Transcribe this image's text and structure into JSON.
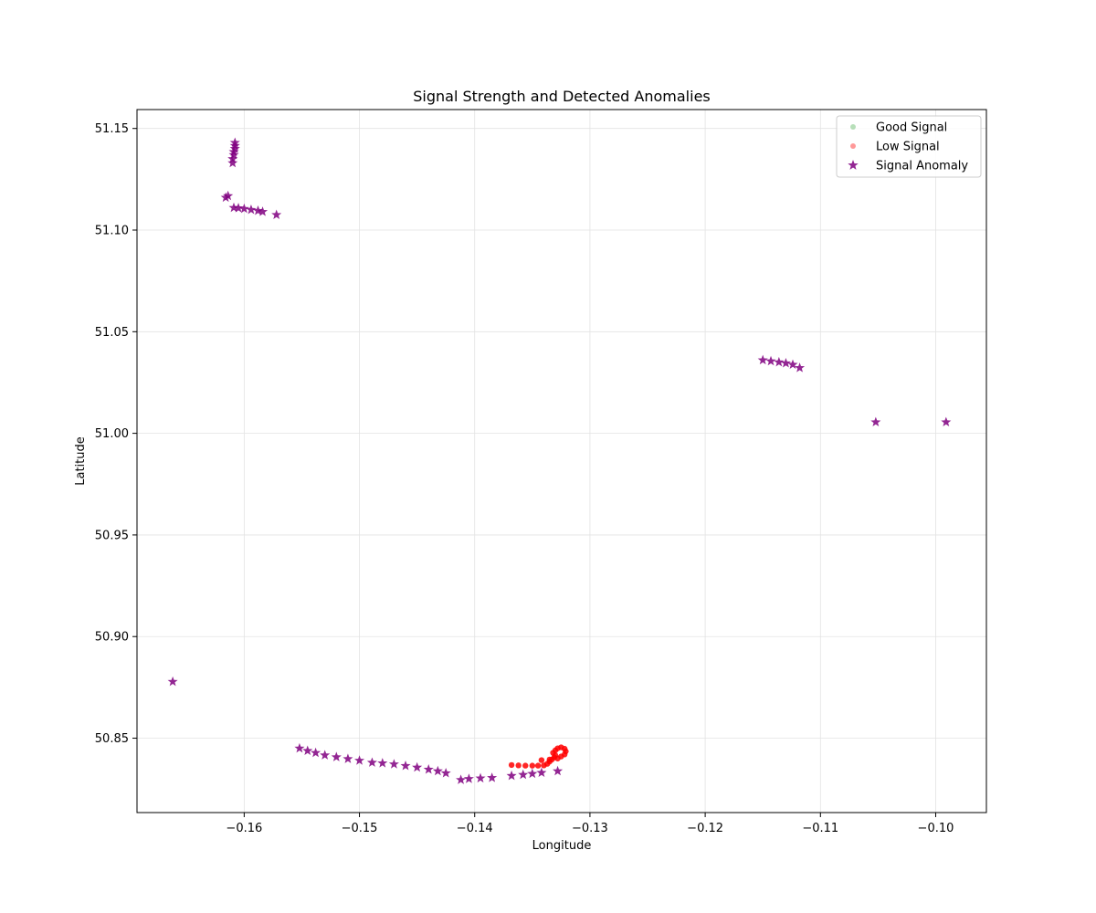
{
  "chart_data": {
    "type": "scatter",
    "title": "Signal Strength and Detected Anomalies",
    "xlabel": "Longitude",
    "ylabel": "Latitude",
    "xlim": [
      -0.1693,
      -0.0956
    ],
    "ylim": [
      50.8134,
      51.1593
    ],
    "xticks": [
      -0.16,
      -0.15,
      -0.14,
      -0.13,
      -0.12,
      -0.11,
      -0.1
    ],
    "xtick_labels": [
      "−0.16",
      "−0.15",
      "−0.14",
      "−0.13",
      "−0.12",
      "−0.11",
      "−0.10"
    ],
    "yticks": [
      50.85,
      50.9,
      50.95,
      51.0,
      51.05,
      51.1,
      51.15
    ],
    "ytick_labels": [
      "50.85",
      "50.90",
      "50.95",
      "51.00",
      "51.05",
      "51.10",
      "51.15"
    ],
    "grid": true,
    "legend_position": "top-right",
    "series": [
      {
        "name": "Good Signal",
        "marker": "circle",
        "color": "#4caf50",
        "points": []
      },
      {
        "name": "Low Signal",
        "marker": "circle",
        "color": "#ff0000",
        "points": [
          [
            -0.1368,
            50.8368
          ],
          [
            -0.1362,
            50.8366
          ],
          [
            -0.1356,
            50.8365
          ],
          [
            -0.135,
            50.8365
          ],
          [
            -0.1345,
            50.8365
          ],
          [
            -0.134,
            50.8366
          ],
          [
            -0.1337,
            50.8374
          ],
          [
            -0.1335,
            50.8385
          ],
          [
            -0.1333,
            50.8395
          ],
          [
            -0.1331,
            50.8405
          ],
          [
            -0.133,
            50.8415
          ],
          [
            -0.1332,
            50.8428
          ],
          [
            -0.133,
            50.844
          ],
          [
            -0.1328,
            50.845
          ],
          [
            -0.1325,
            50.8455
          ],
          [
            -0.1322,
            50.8448
          ],
          [
            -0.1321,
            50.8435
          ],
          [
            -0.1322,
            50.842
          ],
          [
            -0.1325,
            50.841
          ],
          [
            -0.1328,
            50.84
          ],
          [
            -0.1335,
            50.8395
          ],
          [
            -0.1342,
            50.8392
          ]
        ]
      },
      {
        "name": "Signal Anomaly",
        "marker": "star",
        "color": "#800080",
        "points": [
          [
            -0.161,
            51.133
          ],
          [
            -0.161,
            51.135
          ],
          [
            -0.1609,
            51.137
          ],
          [
            -0.1609,
            51.1385
          ],
          [
            -0.1608,
            51.14
          ],
          [
            -0.1608,
            51.1415
          ],
          [
            -0.1608,
            51.143
          ],
          [
            -0.1616,
            51.116
          ],
          [
            -0.1614,
            51.1168
          ],
          [
            -0.1609,
            51.111
          ],
          [
            -0.1605,
            51.1108
          ],
          [
            -0.16,
            51.1105
          ],
          [
            -0.1594,
            51.11
          ],
          [
            -0.1588,
            51.1095
          ],
          [
            -0.1584,
            51.109
          ],
          [
            -0.1572,
            51.1075
          ],
          [
            -0.115,
            51.036
          ],
          [
            -0.1143,
            51.0355
          ],
          [
            -0.1136,
            51.035
          ],
          [
            -0.113,
            51.0345
          ],
          [
            -0.1124,
            51.0338
          ],
          [
            -0.1118,
            51.0322
          ],
          [
            -0.1052,
            51.0055
          ],
          [
            -0.0991,
            51.0055
          ],
          [
            -0.1662,
            50.8778
          ],
          [
            -0.1552,
            50.845
          ],
          [
            -0.1545,
            50.8438
          ],
          [
            -0.1538,
            50.8428
          ],
          [
            -0.153,
            50.8416
          ],
          [
            -0.152,
            50.8407
          ],
          [
            -0.151,
            50.8398
          ],
          [
            -0.15,
            50.839
          ],
          [
            -0.1489,
            50.838
          ],
          [
            -0.148,
            50.8377
          ],
          [
            -0.147,
            50.8372
          ],
          [
            -0.146,
            50.8364
          ],
          [
            -0.145,
            50.8356
          ],
          [
            -0.144,
            50.8346
          ],
          [
            -0.1432,
            50.8338
          ],
          [
            -0.1425,
            50.8328
          ],
          [
            -0.1412,
            50.8295
          ],
          [
            -0.1405,
            50.83
          ],
          [
            -0.1395,
            50.8303
          ],
          [
            -0.1385,
            50.8305
          ],
          [
            -0.1368,
            50.8315
          ],
          [
            -0.1358,
            50.832
          ],
          [
            -0.135,
            50.8325
          ],
          [
            -0.1342,
            50.833
          ],
          [
            -0.1328,
            50.8338
          ]
        ]
      }
    ]
  }
}
